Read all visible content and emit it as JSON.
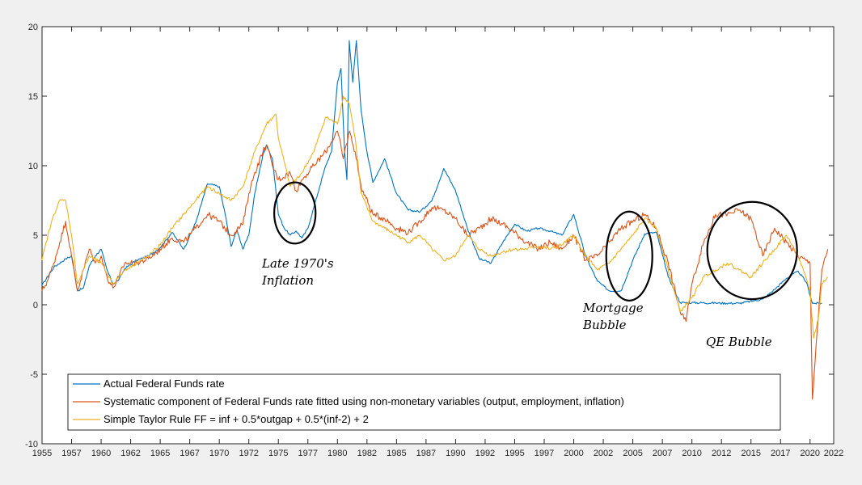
{
  "chart_data": {
    "type": "line",
    "title": "",
    "xlabel": "",
    "ylabel": "",
    "xlim": [
      1955,
      2022
    ],
    "ylim": [
      -10,
      20
    ],
    "grid": false,
    "legend_position": "bottom-left",
    "x_ticks": [
      {
        "value": 1955,
        "label": "1955"
      },
      {
        "value": 1957.5,
        "label": "1957"
      },
      {
        "value": 1960,
        "label": "1960"
      },
      {
        "value": 1962.5,
        "label": "1962"
      },
      {
        "value": 1965,
        "label": "1965"
      },
      {
        "value": 1967.5,
        "label": "1967"
      },
      {
        "value": 1970,
        "label": "1970"
      },
      {
        "value": 1972.5,
        "label": "1972"
      },
      {
        "value": 1975,
        "label": "1975"
      },
      {
        "value": 1977.5,
        "label": "1977"
      },
      {
        "value": 1980,
        "label": "1980"
      },
      {
        "value": 1982.5,
        "label": "1982"
      },
      {
        "value": 1985,
        "label": "1985"
      },
      {
        "value": 1987.5,
        "label": "1987"
      },
      {
        "value": 1990,
        "label": "1990"
      },
      {
        "value": 1992.5,
        "label": "1992"
      },
      {
        "value": 1995,
        "label": "1995"
      },
      {
        "value": 1997.5,
        "label": "1997"
      },
      {
        "value": 2000,
        "label": "2000"
      },
      {
        "value": 2002.5,
        "label": "2002"
      },
      {
        "value": 2005,
        "label": "2005"
      },
      {
        "value": 2007.5,
        "label": "2007"
      },
      {
        "value": 2010,
        "label": "2010"
      },
      {
        "value": 2012.5,
        "label": "2012"
      },
      {
        "value": 2015,
        "label": "2015"
      },
      {
        "value": 2017.5,
        "label": "2017"
      },
      {
        "value": 2020,
        "label": "2020"
      },
      {
        "value": 2022,
        "label": "2022"
      }
    ],
    "y_ticks": [
      {
        "value": -10,
        "label": "-10"
      },
      {
        "value": -5,
        "label": "-5"
      },
      {
        "value": 0,
        "label": "0"
      },
      {
        "value": 5,
        "label": "5"
      },
      {
        "value": 10,
        "label": "10"
      },
      {
        "value": 15,
        "label": "15"
      },
      {
        "value": 20,
        "label": "20"
      }
    ],
    "series": [
      {
        "name": "Actual Federal Funds rate",
        "color": "#0072bd",
        "points": [
          [
            1955,
            1.4
          ],
          [
            1956,
            2.7
          ],
          [
            1957,
            3.3
          ],
          [
            1957.5,
            3.5
          ],
          [
            1958,
            1.0
          ],
          [
            1958.5,
            1.2
          ],
          [
            1959,
            2.8
          ],
          [
            1959.5,
            3.5
          ],
          [
            1960,
            4.0
          ],
          [
            1960.5,
            2.5
          ],
          [
            1961,
            1.5
          ],
          [
            1961.5,
            1.8
          ],
          [
            1962,
            2.6
          ],
          [
            1963,
            3.2
          ],
          [
            1964,
            3.5
          ],
          [
            1965,
            4.1
          ],
          [
            1966,
            5.2
          ],
          [
            1967,
            4.0
          ],
          [
            1968,
            5.9
          ],
          [
            1969,
            8.7
          ],
          [
            1970,
            8.5
          ],
          [
            1970.5,
            6.5
          ],
          [
            1971,
            4.2
          ],
          [
            1971.5,
            5.4
          ],
          [
            1972,
            4.0
          ],
          [
            1972.5,
            5.0
          ],
          [
            1973,
            8.0
          ],
          [
            1973.7,
            10.8
          ],
          [
            1974,
            11.5
          ],
          [
            1974.5,
            10.5
          ],
          [
            1975,
            6.5
          ],
          [
            1975.5,
            5.5
          ],
          [
            1976,
            5.0
          ],
          [
            1976.5,
            5.3
          ],
          [
            1977,
            4.8
          ],
          [
            1977.5,
            5.5
          ],
          [
            1978,
            7.0
          ],
          [
            1978.5,
            8.5
          ],
          [
            1979,
            10.0
          ],
          [
            1979.5,
            11.0
          ],
          [
            1980,
            16.0
          ],
          [
            1980.3,
            17.0
          ],
          [
            1980.6,
            11.0
          ],
          [
            1980.8,
            9.0
          ],
          [
            1981,
            19.0
          ],
          [
            1981.3,
            16.0
          ],
          [
            1981.6,
            19.0
          ],
          [
            1982,
            14.0
          ],
          [
            1982.5,
            11.0
          ],
          [
            1983,
            8.8
          ],
          [
            1984,
            10.5
          ],
          [
            1985,
            8.0
          ],
          [
            1986,
            6.8
          ],
          [
            1987,
            6.7
          ],
          [
            1988,
            7.5
          ],
          [
            1989,
            9.8
          ],
          [
            1990,
            8.2
          ],
          [
            1991,
            5.5
          ],
          [
            1992,
            3.3
          ],
          [
            1993,
            3.0
          ],
          [
            1994,
            4.5
          ],
          [
            1995,
            5.8
          ],
          [
            1996,
            5.3
          ],
          [
            1997,
            5.5
          ],
          [
            1998,
            5.3
          ],
          [
            1999,
            5.0
          ],
          [
            2000,
            6.5
          ],
          [
            2001,
            3.5
          ],
          [
            2002,
            1.7
          ],
          [
            2003,
            1.0
          ],
          [
            2004,
            1.0
          ],
          [
            2005,
            3.2
          ],
          [
            2006,
            5.1
          ],
          [
            2007,
            5.2
          ],
          [
            2008,
            2.0
          ],
          [
            2009,
            0.15
          ],
          [
            2010,
            0.15
          ],
          [
            2012,
            0.12
          ],
          [
            2014,
            0.1
          ],
          [
            2016,
            0.4
          ],
          [
            2017,
            1.1
          ],
          [
            2018,
            1.9
          ],
          [
            2019,
            2.4
          ],
          [
            2019.7,
            1.6
          ],
          [
            2020.2,
            0.1
          ],
          [
            2021,
            0.1
          ]
        ]
      },
      {
        "name": "Systematic component of Federal Funds rate fitted using non-monetary variables (output, employment, inflation)",
        "color": "#d95319",
        "points": [
          [
            1955,
            1.0
          ],
          [
            1955.5,
            1.8
          ],
          [
            1956,
            3.0
          ],
          [
            1956.5,
            4.5
          ],
          [
            1957,
            6.0
          ],
          [
            1957.5,
            3.5
          ],
          [
            1958,
            1.0
          ],
          [
            1958.5,
            2.5
          ],
          [
            1959,
            4.0
          ],
          [
            1959.5,
            3.0
          ],
          [
            1960,
            3.5
          ],
          [
            1960.5,
            2.0
          ],
          [
            1961,
            1.2
          ],
          [
            1961.5,
            2.0
          ],
          [
            1962,
            3.0
          ],
          [
            1963,
            3.0
          ],
          [
            1964,
            3.3
          ],
          [
            1965,
            4.0
          ],
          [
            1966,
            4.8
          ],
          [
            1967,
            4.5
          ],
          [
            1968,
            5.5
          ],
          [
            1969,
            6.5
          ],
          [
            1970,
            6.0
          ],
          [
            1971,
            5.0
          ],
          [
            1972,
            5.8
          ],
          [
            1972.5,
            8.0
          ],
          [
            1973,
            9.5
          ],
          [
            1973.7,
            11.0
          ],
          [
            1974,
            11.5
          ],
          [
            1974.5,
            10.0
          ],
          [
            1975,
            9.0
          ],
          [
            1976,
            9.5
          ],
          [
            1976.5,
            8.2
          ],
          [
            1977,
            9.0
          ],
          [
            1978,
            10.0
          ],
          [
            1979,
            11.0
          ],
          [
            1980,
            12.5
          ],
          [
            1980.5,
            10.5
          ],
          [
            1981,
            12.5
          ],
          [
            1981.5,
            11.0
          ],
          [
            1982,
            8.5
          ],
          [
            1983,
            6.5
          ],
          [
            1984,
            6.2
          ],
          [
            1985,
            5.5
          ],
          [
            1986,
            5.2
          ],
          [
            1987,
            6.0
          ],
          [
            1988,
            7.0
          ],
          [
            1989,
            6.8
          ],
          [
            1990,
            6.2
          ],
          [
            1991,
            5.0
          ],
          [
            1992,
            5.5
          ],
          [
            1993,
            6.2
          ],
          [
            1994,
            5.8
          ],
          [
            1995,
            5.2
          ],
          [
            1996,
            4.5
          ],
          [
            1997,
            4.0
          ],
          [
            1998,
            4.5
          ],
          [
            1999,
            4.0
          ],
          [
            2000,
            5.0
          ],
          [
            2001,
            3.2
          ],
          [
            2002,
            3.5
          ],
          [
            2003,
            4.5
          ],
          [
            2004,
            5.5
          ],
          [
            2005,
            6.0
          ],
          [
            2006,
            6.5
          ],
          [
            2007,
            5.5
          ],
          [
            2008,
            3.0
          ],
          [
            2009,
            -0.5
          ],
          [
            2009.5,
            -1.2
          ],
          [
            2010,
            1.5
          ],
          [
            2011,
            4.5
          ],
          [
            2012,
            6.5
          ],
          [
            2013,
            6.5
          ],
          [
            2014,
            6.8
          ],
          [
            2015,
            6.2
          ],
          [
            2016,
            3.5
          ],
          [
            2017,
            5.5
          ],
          [
            2018,
            4.5
          ],
          [
            2019,
            3.5
          ],
          [
            2020,
            3.0
          ],
          [
            2020.2,
            -6.8
          ],
          [
            2020.5,
            -3.0
          ],
          [
            2021,
            2.5
          ],
          [
            2021.5,
            4.0
          ]
        ]
      },
      {
        "name": "Simple Taylor Rule FF = inf + 0.5*outgap + 0.5*(inf-2) + 2",
        "color": "#edb120",
        "points": [
          [
            1955,
            3.2
          ],
          [
            1955.5,
            5.0
          ],
          [
            1956,
            6.5
          ],
          [
            1956.5,
            7.5
          ],
          [
            1957,
            7.5
          ],
          [
            1957.5,
            5.0
          ],
          [
            1958,
            1.5
          ],
          [
            1958.5,
            2.5
          ],
          [
            1959,
            3.5
          ],
          [
            1960,
            3.0
          ],
          [
            1961,
            1.5
          ],
          [
            1961.5,
            2.0
          ],
          [
            1962,
            2.5
          ],
          [
            1963,
            3.0
          ],
          [
            1964,
            3.5
          ],
          [
            1965,
            4.3
          ],
          [
            1966,
            5.5
          ],
          [
            1967,
            6.5
          ],
          [
            1968,
            7.5
          ],
          [
            1969,
            8.5
          ],
          [
            1970,
            8.0
          ],
          [
            1971,
            7.5
          ],
          [
            1972,
            8.5
          ],
          [
            1973,
            11.0
          ],
          [
            1974,
            13.0
          ],
          [
            1974.8,
            13.7
          ],
          [
            1975,
            12.0
          ],
          [
            1976,
            8.5
          ],
          [
            1977,
            9.5
          ],
          [
            1978,
            11.0
          ],
          [
            1979,
            13.5
          ],
          [
            1980,
            13.0
          ],
          [
            1980.5,
            15.0
          ],
          [
            1981,
            14.5
          ],
          [
            1981.5,
            12.0
          ],
          [
            1982,
            8.0
          ],
          [
            1983,
            6.0
          ],
          [
            1984,
            5.5
          ],
          [
            1985,
            5.0
          ],
          [
            1986,
            4.5
          ],
          [
            1987,
            5.0
          ],
          [
            1988,
            4.0
          ],
          [
            1989,
            3.2
          ],
          [
            1990,
            3.5
          ],
          [
            1991,
            5.0
          ],
          [
            1992,
            4.0
          ],
          [
            1993,
            3.5
          ],
          [
            1994,
            3.8
          ],
          [
            1995,
            4.0
          ],
          [
            1996,
            4.0
          ],
          [
            1997,
            4.2
          ],
          [
            1998,
            4.0
          ],
          [
            1999,
            4.3
          ],
          [
            2000,
            5.0
          ],
          [
            2001,
            3.5
          ],
          [
            2002,
            2.5
          ],
          [
            2003,
            3.0
          ],
          [
            2004,
            4.0
          ],
          [
            2005,
            5.0
          ],
          [
            2006,
            6.2
          ],
          [
            2007,
            5.5
          ],
          [
            2008,
            2.5
          ],
          [
            2009,
            -0.5
          ],
          [
            2010,
            0.5
          ],
          [
            2011,
            2.0
          ],
          [
            2012,
            2.5
          ],
          [
            2013,
            3.0
          ],
          [
            2014,
            2.5
          ],
          [
            2015,
            2.0
          ],
          [
            2016,
            3.0
          ],
          [
            2017,
            4.0
          ],
          [
            2018,
            5.0
          ],
          [
            2019,
            3.5
          ],
          [
            2020,
            1.0
          ],
          [
            2020.3,
            -2.4
          ],
          [
            2020.7,
            -1.0
          ],
          [
            2021,
            1.5
          ],
          [
            2021.5,
            2.0
          ]
        ]
      }
    ],
    "annotations": [
      {
        "lines": [
          "Late 1970's",
          "Inflation"
        ],
        "circle_center": [
          1976.4,
          6.6
        ],
        "circle_radius": [
          1.75,
          2.2
        ]
      },
      {
        "lines": [
          "Mortgage",
          "Bubble"
        ],
        "circle_center": [
          2004.7,
          3.5
        ],
        "circle_radius": [
          1.95,
          3.2
        ]
      },
      {
        "lines": [
          "QE Bubble"
        ],
        "circle_center": [
          2015.1,
          3.9
        ],
        "circle_radius": [
          3.8,
          3.5
        ]
      }
    ]
  }
}
